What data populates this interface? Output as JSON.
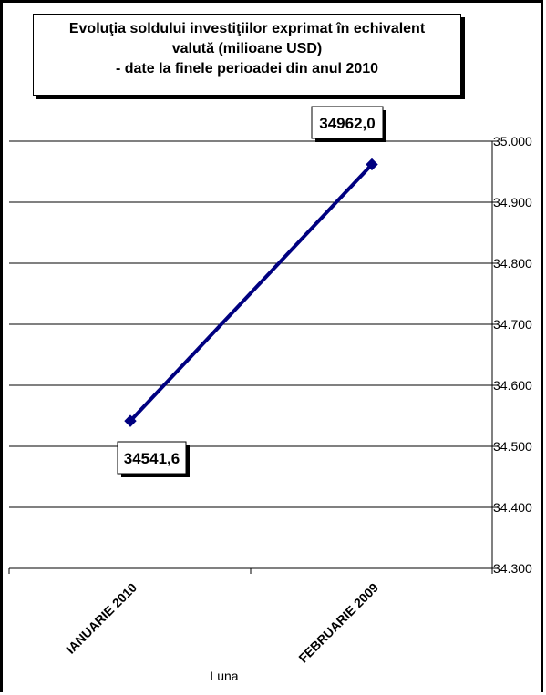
{
  "chart_data": {
    "type": "line",
    "title_lines": [
      "Evoluţia soldului investiţiilor exprimat în echivalent",
      "valută (milioane USD)",
      "- date la finele perioadei din anul 2010"
    ],
    "xlabel": "Luna",
    "ylabel": "",
    "categories": [
      "IANUARIE 2010",
      "FEBRUARIE 2009"
    ],
    "series": [
      {
        "values": [
          34541.6,
          34962.0
        ],
        "color": "#000080",
        "marker": "diamond"
      }
    ],
    "data_labels": [
      "34541,6",
      "34962,0"
    ],
    "ylim": [
      34300,
      35000
    ],
    "yticks": [
      35000,
      34900,
      34800,
      34700,
      34600,
      34500,
      34400,
      34300
    ],
    "ytick_labels": [
      "35.000",
      "34.900",
      "34.800",
      "34.700",
      "34.600",
      "34.500",
      "34.400",
      "34.300"
    ],
    "y_axis_side": "right",
    "grid": true
  }
}
